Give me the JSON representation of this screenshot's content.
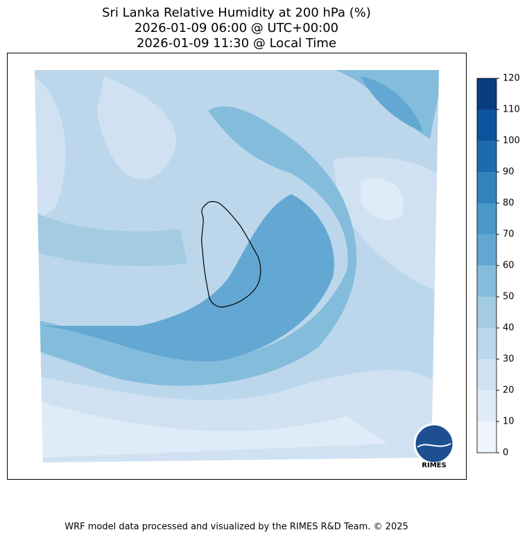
{
  "title": [
    "Sri Lanka Relative Humidity at 200 hPa (%)",
    "2026-01-09 06:00 @ UTC+00:00",
    "2026-01-09 11:30 @ Local Time"
  ],
  "colorbar": {
    "range": [
      0,
      120
    ],
    "ticks": [
      0,
      10,
      20,
      30,
      40,
      50,
      60,
      70,
      80,
      90,
      100,
      110,
      120
    ],
    "colors": [
      "#f0f6fd",
      "#dfebf7",
      "#d0e2f2",
      "#bcd7eb",
      "#a3cce3",
      "#84bcdc",
      "#63a8d2",
      "#4a97c9",
      "#3282be",
      "#1d6aaf",
      "#0c549e",
      "#083d7f"
    ]
  },
  "logo": "RIMES",
  "footer": "WRF model data processed and visualized by the RIMES R&D Team. © 2025"
}
